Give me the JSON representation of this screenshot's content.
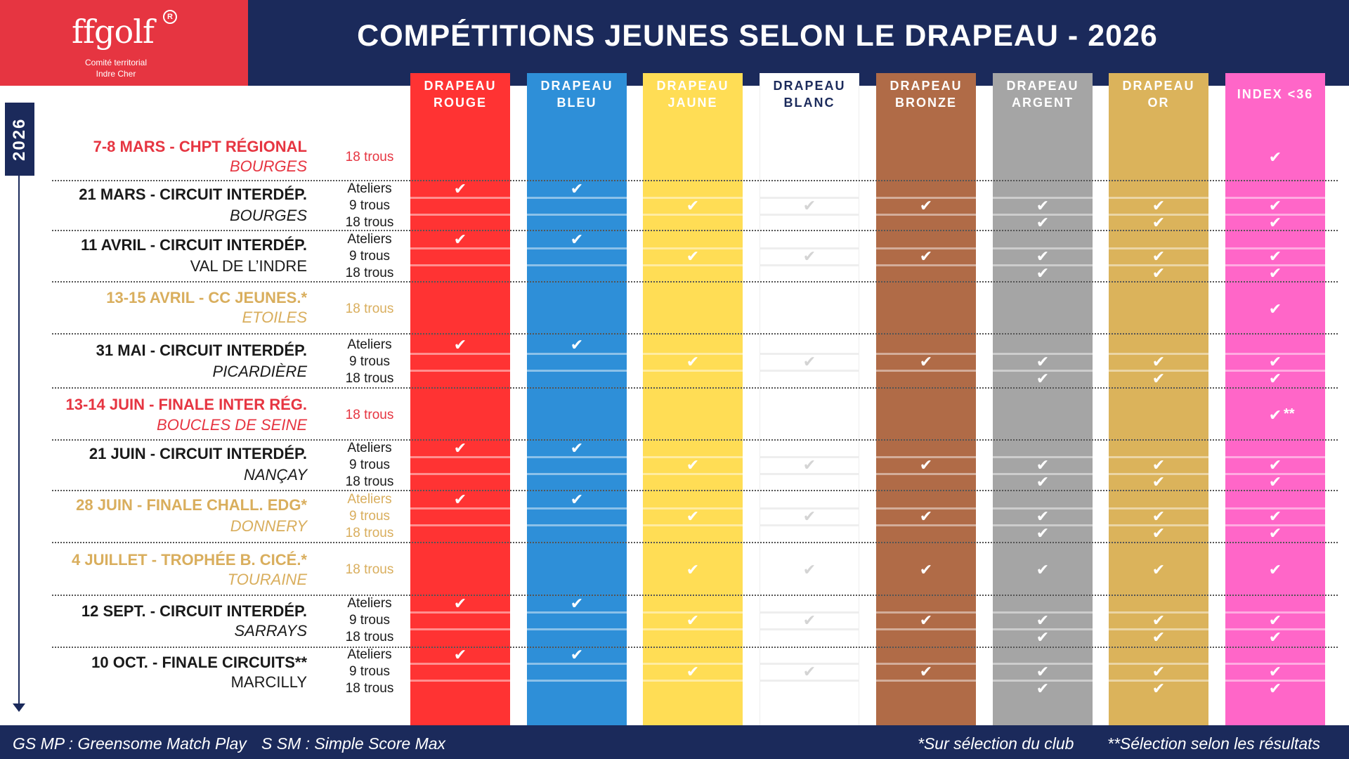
{
  "header": {
    "logo_text": "ffgolf",
    "logo_reg": "R",
    "logo_sub1": "Comité territorial",
    "logo_sub2": "Indre Cher",
    "title": "COMPÉTITIONS  JEUNES SELON LE DRAPEAU - 2026"
  },
  "year": "2026",
  "columns": [
    {
      "line1": "DRAPEAU",
      "line2": "ROUGE",
      "color": "#ff3333"
    },
    {
      "line1": "DRAPEAU",
      "line2": "BLEU",
      "color": "#2e8fd8"
    },
    {
      "line1": "DRAPEAU",
      "line2": "JAUNE",
      "color": "#ffdd55"
    },
    {
      "line1": "DRAPEAU",
      "line2": "BLANC",
      "color": "#ffffff"
    },
    {
      "line1": "DRAPEAU",
      "line2": "BRONZE",
      "color": "#b06b47"
    },
    {
      "line1": "DRAPEAU",
      "line2": "ARGENT",
      "color": "#a5a5a5"
    },
    {
      "line1": "DRAPEAU",
      "line2": "OR",
      "color": "#dbb35b"
    },
    {
      "line1": "INDEX <36",
      "line2": "",
      "color": "#ff66c8"
    }
  ],
  "events": [
    {
      "date": "7-8 MARS",
      "name": "CHPT RÉGIONAL",
      "location": "BOURGES",
      "style": "red",
      "loc_italic": true,
      "labels": [
        "18 trous"
      ]
    },
    {
      "date": "21 MARS",
      "name": "CIRCUIT INTERDÉP.",
      "location": "BOURGES",
      "style": "normal",
      "loc_italic": true,
      "labels": [
        "Ateliers",
        "9 trous",
        "18 trous"
      ]
    },
    {
      "date": "11 AVRIL",
      "name": "CIRCUIT INTERDÉP.",
      "location": "VAL DE L’INDRE",
      "style": "normal",
      "loc_italic": false,
      "labels": [
        "Ateliers",
        "9 trous",
        "18 trous"
      ]
    },
    {
      "date": "13-15 AVRIL",
      "name": "CC JEUNES.*",
      "location": "ETOILES",
      "style": "gold",
      "loc_italic": true,
      "labels": [
        "18 trous"
      ]
    },
    {
      "date": "31 MAI",
      "name": "CIRCUIT INTERDÉP.",
      "location": "PICARDIÈRE",
      "style": "normal",
      "loc_italic": true,
      "labels": [
        "Ateliers",
        "9 trous",
        "18 trous"
      ]
    },
    {
      "date": "13-14 JUIN",
      "name": "FINALE INTER RÉG.",
      "location": "BOUCLES DE SEINE",
      "style": "red",
      "loc_italic": true,
      "labels": [
        "18 trous"
      ]
    },
    {
      "date": "21 JUIN",
      "name": "CIRCUIT INTERDÉP.",
      "location": "NANÇAY",
      "style": "normal",
      "loc_italic": true,
      "labels": [
        "Ateliers",
        "9 trous",
        "18 trous"
      ]
    },
    {
      "date": "28 JUIN",
      "name": "FINALE CHALL. EDG*",
      "location": "DONNERY",
      "style": "gold",
      "loc_italic": true,
      "labels": [
        "Ateliers",
        "9 trous",
        "18 trous"
      ]
    },
    {
      "date": "4 JUILLET",
      "name": "TROPHÉE B. CICÉ.*",
      "location": "TOURAINE",
      "style": "gold",
      "loc_italic": true,
      "labels": [
        "18 trous"
      ]
    },
    {
      "date": "12 SEPT.",
      "name": "CIRCUIT INTERDÉP.",
      "location": "SARRAYS",
      "style": "normal",
      "loc_italic": true,
      "labels": [
        "Ateliers",
        "9 trous",
        "18 trous"
      ]
    },
    {
      "date": "10 OCT.",
      "name": "FINALE CIRCUITS**",
      "location": "MARCILLY",
      "style": "normal",
      "loc_italic": false,
      "labels": [
        "Ateliers",
        "9 trous",
        "18 trous"
      ]
    }
  ],
  "check_glyph": "✔",
  "double_star": "**",
  "footer": {
    "left1": "GS MP : Greensome Match Play",
    "left2": "S SM : Simple Score Max",
    "right1": "*Sur sélection du club",
    "right2": "**Sélection selon les résultats"
  }
}
